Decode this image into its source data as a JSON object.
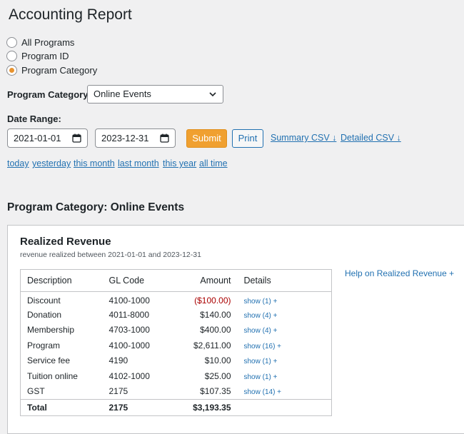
{
  "page": {
    "title": "Accounting Report"
  },
  "filter_type": {
    "options": [
      {
        "label": "All Programs",
        "checked": false
      },
      {
        "label": "Program ID",
        "checked": false
      },
      {
        "label": "Program Category",
        "checked": true
      }
    ]
  },
  "program_category": {
    "label": "Program Category",
    "selected": "Online Events"
  },
  "date_range": {
    "label": "Date Range:",
    "start": "2021-01-01",
    "end": "2023-12-31",
    "submit_label": "Submit",
    "print_label": "Print",
    "summary_csv_label": "Summary CSV ↓",
    "detailed_csv_label": "Detailed CSV ↓"
  },
  "quick_ranges": [
    "today",
    "yesterday",
    "this month",
    "last month",
    "this year",
    "all time"
  ],
  "section": {
    "title": "Program Category: Online Events"
  },
  "realized_revenue": {
    "title": "Realized Revenue",
    "subtitle": "revenue realized between 2021-01-01 and 2023-12-31",
    "help_label": "Help on Realized Revenue +",
    "columns": [
      "Description",
      "GL Code",
      "Amount",
      "Details"
    ],
    "rows": [
      {
        "description": "Discount",
        "gl_code": "4100-1000",
        "amount": "($100.00)",
        "details": "show (1) +"
      },
      {
        "description": "Donation",
        "gl_code": "4011-8000",
        "amount": "$140.00",
        "details": "show (4) +"
      },
      {
        "description": "Membership",
        "gl_code": "4703-1000",
        "amount": "$400.00",
        "details": "show (4) +"
      },
      {
        "description": "Program",
        "gl_code": "4100-1000",
        "amount": "$2,611.00",
        "details": "show (16) +"
      },
      {
        "description": "Service fee",
        "gl_code": "4190",
        "amount": "$10.00",
        "details": "show (1) +"
      },
      {
        "description": "Tuition online",
        "gl_code": "4102-1000",
        "amount": "$25.00",
        "details": "show (1) +"
      },
      {
        "description": "GST",
        "gl_code": "2175",
        "amount": "$107.35",
        "details": "show (14) +"
      }
    ],
    "total": {
      "label": "Total",
      "gl_code": "2175",
      "amount": "$3,193.35"
    }
  },
  "colors": {
    "accent": "#2271b1",
    "submit": "#f0a030",
    "negative": "#aa0000"
  },
  "icons": {
    "select": "chevron-down-icon",
    "date": "calendar-icon"
  }
}
